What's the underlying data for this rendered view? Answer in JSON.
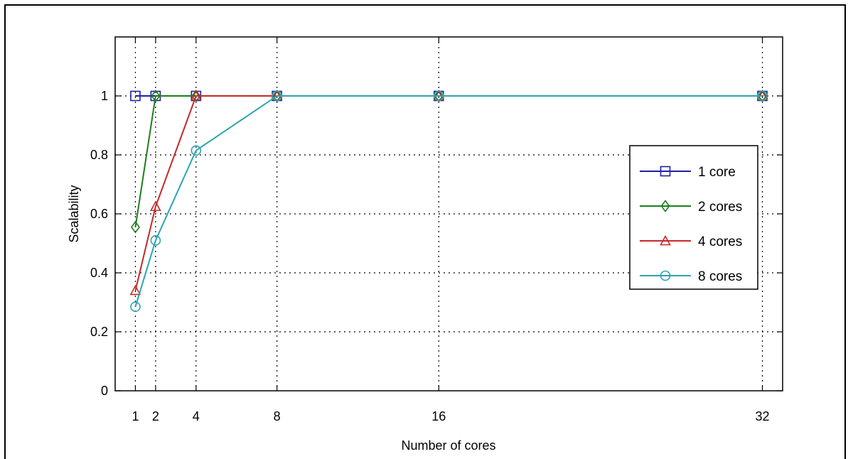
{
  "chart_data": {
    "type": "line",
    "title": "",
    "xlabel": "Number of cores",
    "ylabel": "Scalability",
    "x": [
      1,
      2,
      4,
      8,
      16,
      32
    ],
    "x_tick_labels": [
      "1",
      "2",
      "4",
      "8",
      "16",
      "32"
    ],
    "y_tick_labels": [
      "0",
      "0.2",
      "0.4",
      "0.6",
      "0.8",
      "1"
    ],
    "y_ticks": [
      0,
      0.2,
      0.4,
      0.6,
      0.8,
      1
    ],
    "xlim": [
      0,
      33
    ],
    "ylim": [
      0,
      1.2
    ],
    "grid": true,
    "legend_position": "right",
    "series": [
      {
        "name": "1 core",
        "color": "#1f1fa8",
        "marker": "square",
        "values": [
          1,
          1,
          1,
          1,
          1,
          1
        ]
      },
      {
        "name": "2 cores",
        "color": "#1e7d1e",
        "marker": "diamond",
        "values": [
          0.555,
          1,
          1,
          1,
          1,
          1
        ]
      },
      {
        "name": "4 cores",
        "color": "#c62828",
        "marker": "triangle",
        "values": [
          0.34,
          0.625,
          1,
          1,
          1,
          1
        ]
      },
      {
        "name": "8 cores",
        "color": "#2aa5b0",
        "marker": "circle",
        "values": [
          0.285,
          0.51,
          0.815,
          1,
          1,
          1
        ]
      }
    ]
  }
}
